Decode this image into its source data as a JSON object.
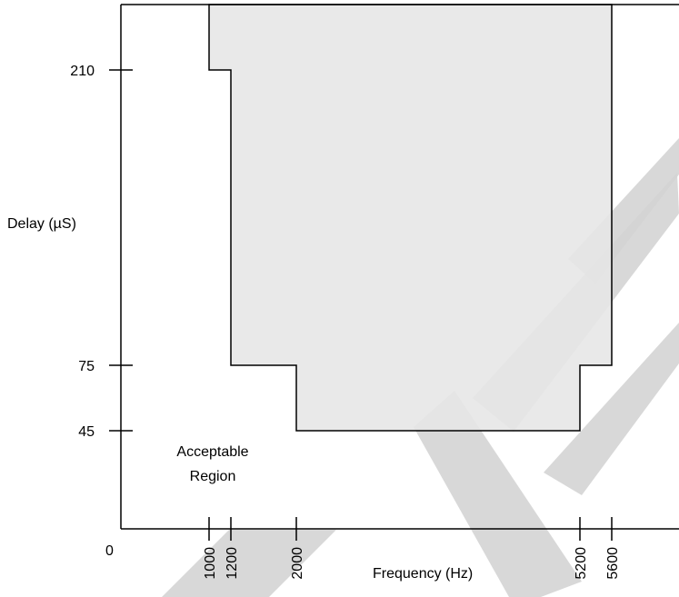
{
  "chart_data": {
    "type": "area",
    "title": "",
    "xlabel": "Frequency (Hz)",
    "ylabel": "Delay (µS)",
    "origin_label": "0",
    "x_ticks": [
      1000,
      1200,
      2000,
      5200,
      5600
    ],
    "y_ticks": [
      45,
      75,
      210
    ],
    "series": [
      {
        "values": [
          {
            "x": 1000,
            "y": 210
          },
          {
            "x": 1200,
            "y": 210
          },
          {
            "x": 1200,
            "y": 75
          },
          {
            "x": 2000,
            "y": 75
          },
          {
            "x": 2000,
            "y": 45
          },
          {
            "x": 5200,
            "y": 45
          },
          {
            "x": 5200,
            "y": 75
          },
          {
            "x": 5600,
            "y": 75
          }
        ]
      }
    ],
    "region_label_line1": "Acceptable",
    "region_label_line2": "Region",
    "fill_color": "#e6e6e6",
    "line_color": "#000000",
    "watermark_color": "#d4d4d4",
    "grid": false
  }
}
